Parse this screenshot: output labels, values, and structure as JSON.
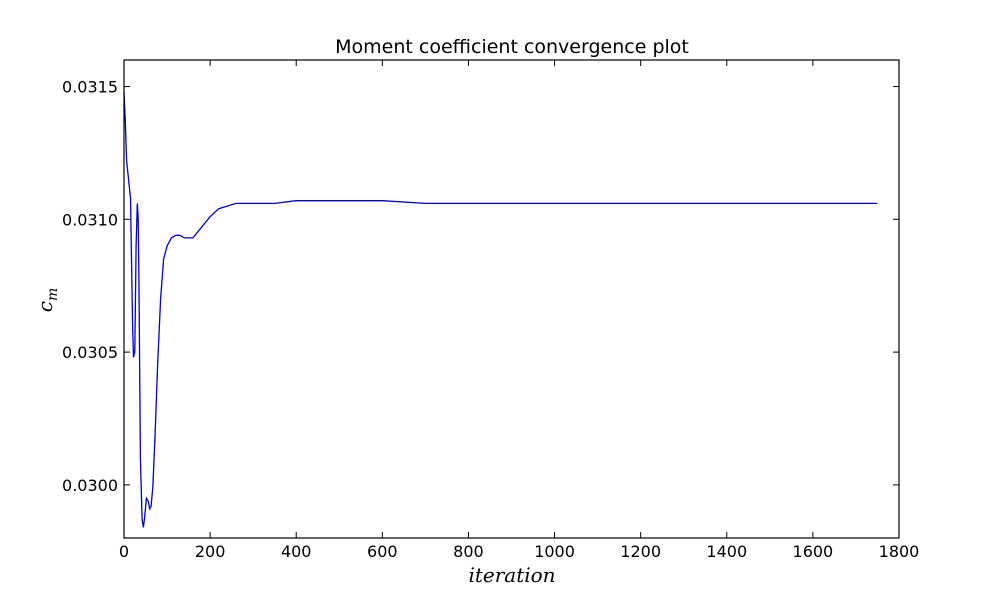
{
  "chart_data": {
    "type": "line",
    "title": "Moment coefficient convergence plot",
    "xlabel": "iteration",
    "ylabel": {
      "base": "c",
      "subscript": "m"
    },
    "xlim": [
      0,
      1800
    ],
    "ylim": [
      0.0298,
      0.0316
    ],
    "xticks": [
      0,
      200,
      400,
      600,
      800,
      1000,
      1200,
      1400,
      1600,
      1800
    ],
    "xtick_labels": [
      "0",
      "200",
      "400",
      "600",
      "800",
      "1000",
      "1200",
      "1400",
      "1600",
      "1800"
    ],
    "yticks": [
      0.03,
      0.0305,
      0.031,
      0.0315
    ],
    "ytick_labels": [
      "0.0300",
      "0.0305",
      "0.0310",
      "0.0315"
    ],
    "grid": false,
    "line_color": "#0000cc",
    "series": [
      {
        "x": [
          0,
          3,
          6,
          10,
          15,
          20,
          22,
          25,
          28,
          31,
          33,
          35,
          38,
          42,
          45,
          48,
          52,
          56,
          60,
          63,
          67,
          72,
          78,
          85,
          92,
          100,
          110,
          120,
          130,
          140,
          150,
          160,
          170,
          180,
          190,
          200,
          220,
          240,
          260,
          280,
          300,
          350,
          400,
          450,
          500,
          600,
          700,
          800,
          900,
          1000,
          1200,
          1400,
          1600,
          1750
        ],
        "y": [
          0.03148,
          0.03137,
          0.03122,
          0.03116,
          0.03108,
          0.0306,
          0.03048,
          0.0305,
          0.0309,
          0.03106,
          0.031,
          0.0307,
          0.0301,
          0.02987,
          0.02984,
          0.02988,
          0.02995,
          0.02994,
          0.02991,
          0.02992,
          0.02999,
          0.03018,
          0.03045,
          0.0307,
          0.03085,
          0.0309,
          0.03093,
          0.03094,
          0.03094,
          0.03093,
          0.03093,
          0.03093,
          0.03095,
          0.03097,
          0.03099,
          0.03101,
          0.03104,
          0.03105,
          0.03106,
          0.03106,
          0.03106,
          0.03106,
          0.03107,
          0.03107,
          0.03107,
          0.03107,
          0.03106,
          0.03106,
          0.03106,
          0.03106,
          0.03106,
          0.03106,
          0.03106,
          0.03106
        ]
      }
    ]
  }
}
